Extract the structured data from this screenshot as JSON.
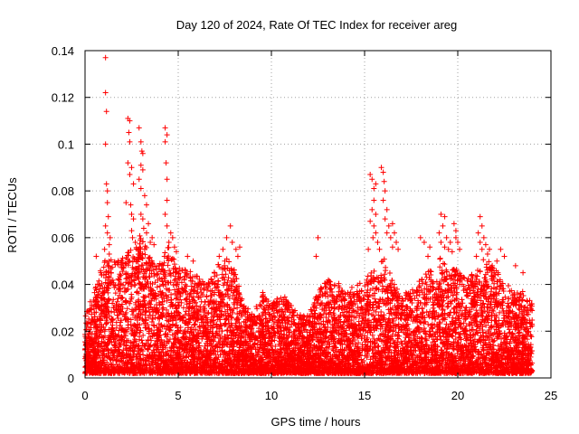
{
  "chart_data": {
    "type": "scatter",
    "title": "Day 120 of 2024, Rate Of TEC Index for receiver areg",
    "xlabel": "GPS time / hours",
    "ylabel": "ROTI / TECUs",
    "xlim": [
      0,
      25
    ],
    "ylim": [
      0,
      0.14
    ],
    "x_ticks": [
      "0",
      "5",
      "10",
      "15",
      "20",
      "25"
    ],
    "y_ticks": [
      "0",
      "0.02",
      "0.04",
      "0.06",
      "0.08",
      "0.1",
      "0.12",
      "0.14"
    ],
    "grid": true,
    "marker": "+",
    "series_color": "#ff0000",
    "data_extent_hours": [
      0,
      24
    ],
    "envelope": [
      [
        0.0,
        0.025
      ],
      [
        0.5,
        0.036
      ],
      [
        1.0,
        0.048
      ],
      [
        1.5,
        0.05
      ],
      [
        2.0,
        0.05
      ],
      [
        2.5,
        0.055
      ],
      [
        3.0,
        0.06
      ],
      [
        3.5,
        0.05
      ],
      [
        4.0,
        0.047
      ],
      [
        4.5,
        0.055
      ],
      [
        5.0,
        0.045
      ],
      [
        5.5,
        0.045
      ],
      [
        6.0,
        0.042
      ],
      [
        6.5,
        0.038
      ],
      [
        7.0,
        0.045
      ],
      [
        7.5,
        0.05
      ],
      [
        8.0,
        0.045
      ],
      [
        8.5,
        0.03
      ],
      [
        9.0,
        0.025
      ],
      [
        9.5,
        0.035
      ],
      [
        10.0,
        0.03
      ],
      [
        10.5,
        0.035
      ],
      [
        11.0,
        0.03
      ],
      [
        11.5,
        0.025
      ],
      [
        12.0,
        0.025
      ],
      [
        12.5,
        0.035
      ],
      [
        13.0,
        0.04
      ],
      [
        13.5,
        0.04
      ],
      [
        14.0,
        0.035
      ],
      [
        14.5,
        0.038
      ],
      [
        15.0,
        0.04
      ],
      [
        15.5,
        0.045
      ],
      [
        16.0,
        0.05
      ],
      [
        16.5,
        0.04
      ],
      [
        17.0,
        0.035
      ],
      [
        17.5,
        0.035
      ],
      [
        18.0,
        0.04
      ],
      [
        18.5,
        0.045
      ],
      [
        19.0,
        0.05
      ],
      [
        19.5,
        0.045
      ],
      [
        20.0,
        0.045
      ],
      [
        20.5,
        0.04
      ],
      [
        21.0,
        0.045
      ],
      [
        21.5,
        0.05
      ],
      [
        22.0,
        0.045
      ],
      [
        22.5,
        0.04
      ],
      [
        23.0,
        0.035
      ],
      [
        23.5,
        0.035
      ],
      [
        24.0,
        0.03
      ]
    ],
    "outliers": [
      [
        1.1,
        0.137
      ],
      [
        1.1,
        0.122
      ],
      [
        1.15,
        0.114
      ],
      [
        1.1,
        0.1
      ],
      [
        1.15,
        0.083
      ],
      [
        1.2,
        0.08
      ],
      [
        1.2,
        0.075
      ],
      [
        1.25,
        0.069
      ],
      [
        1.1,
        0.065
      ],
      [
        1.2,
        0.062
      ],
      [
        1.35,
        0.06
      ],
      [
        1.3,
        0.057
      ],
      [
        1.05,
        0.055
      ],
      [
        0.6,
        0.052
      ],
      [
        1.3,
        0.053
      ],
      [
        2.3,
        0.111
      ],
      [
        2.4,
        0.11
      ],
      [
        2.35,
        0.105
      ],
      [
        2.4,
        0.101
      ],
      [
        2.3,
        0.092
      ],
      [
        2.5,
        0.09
      ],
      [
        2.4,
        0.087
      ],
      [
        2.6,
        0.083
      ],
      [
        2.2,
        0.075
      ],
      [
        2.45,
        0.074
      ],
      [
        2.5,
        0.07
      ],
      [
        2.6,
        0.068
      ],
      [
        2.5,
        0.063
      ],
      [
        2.55,
        0.06
      ],
      [
        2.7,
        0.058
      ],
      [
        2.9,
        0.107
      ],
      [
        3.0,
        0.101
      ],
      [
        3.05,
        0.097
      ],
      [
        3.1,
        0.096
      ],
      [
        3.0,
        0.091
      ],
      [
        3.1,
        0.089
      ],
      [
        2.9,
        0.085
      ],
      [
        3.0,
        0.081
      ],
      [
        3.2,
        0.078
      ],
      [
        3.3,
        0.074
      ],
      [
        3.0,
        0.07
      ],
      [
        3.1,
        0.068
      ],
      [
        3.15,
        0.064
      ],
      [
        3.4,
        0.066
      ],
      [
        3.3,
        0.062
      ],
      [
        3.5,
        0.058
      ],
      [
        3.6,
        0.06
      ],
      [
        3.7,
        0.057
      ],
      [
        2.85,
        0.055
      ],
      [
        3.2,
        0.055
      ],
      [
        4.3,
        0.107
      ],
      [
        4.4,
        0.104
      ],
      [
        4.3,
        0.101
      ],
      [
        4.35,
        0.092
      ],
      [
        4.4,
        0.085
      ],
      [
        4.4,
        0.076
      ],
      [
        4.3,
        0.07
      ],
      [
        4.4,
        0.065
      ],
      [
        4.6,
        0.062
      ],
      [
        4.7,
        0.06
      ],
      [
        4.5,
        0.058
      ],
      [
        4.8,
        0.056
      ],
      [
        4.9,
        0.054
      ],
      [
        5.5,
        0.052
      ],
      [
        5.8,
        0.05
      ],
      [
        7.2,
        0.052
      ],
      [
        7.4,
        0.055
      ],
      [
        7.6,
        0.06
      ],
      [
        7.8,
        0.065
      ],
      [
        7.9,
        0.058
      ],
      [
        8.1,
        0.055
      ],
      [
        8.3,
        0.056
      ],
      [
        7.5,
        0.05
      ],
      [
        8.2,
        0.052
      ],
      [
        12.5,
        0.06
      ],
      [
        12.4,
        0.052
      ],
      [
        15.3,
        0.087
      ],
      [
        15.4,
        0.085
      ],
      [
        15.5,
        0.081
      ],
      [
        15.6,
        0.083
      ],
      [
        15.5,
        0.076
      ],
      [
        15.4,
        0.072
      ],
      [
        15.6,
        0.07
      ],
      [
        15.5,
        0.065
      ],
      [
        15.3,
        0.067
      ],
      [
        15.6,
        0.062
      ],
      [
        15.45,
        0.06
      ],
      [
        15.7,
        0.058
      ],
      [
        15.2,
        0.055
      ],
      [
        15.8,
        0.055
      ],
      [
        15.9,
        0.09
      ],
      [
        16.0,
        0.088
      ],
      [
        16.05,
        0.084
      ],
      [
        16.1,
        0.08
      ],
      [
        16.0,
        0.076
      ],
      [
        16.2,
        0.072
      ],
      [
        16.1,
        0.068
      ],
      [
        16.3,
        0.065
      ],
      [
        16.2,
        0.062
      ],
      [
        16.4,
        0.06
      ],
      [
        16.5,
        0.066
      ],
      [
        16.6,
        0.062
      ],
      [
        16.7,
        0.058
      ],
      [
        16.5,
        0.056
      ],
      [
        16.8,
        0.055
      ],
      [
        18.0,
        0.06
      ],
      [
        18.2,
        0.058
      ],
      [
        18.5,
        0.056
      ],
      [
        18.4,
        0.052
      ],
      [
        19.1,
        0.07
      ],
      [
        19.3,
        0.069
      ],
      [
        19.2,
        0.065
      ],
      [
        19.0,
        0.062
      ],
      [
        19.4,
        0.06
      ],
      [
        19.1,
        0.058
      ],
      [
        19.3,
        0.056
      ],
      [
        19.5,
        0.055
      ],
      [
        19.6,
        0.058
      ],
      [
        19.7,
        0.054
      ],
      [
        19.8,
        0.066
      ],
      [
        19.9,
        0.063
      ],
      [
        20.0,
        0.058
      ],
      [
        20.1,
        0.055
      ],
      [
        19.9,
        0.06
      ],
      [
        21.2,
        0.069
      ],
      [
        21.3,
        0.065
      ],
      [
        21.1,
        0.062
      ],
      [
        21.4,
        0.06
      ],
      [
        21.2,
        0.058
      ],
      [
        21.5,
        0.057
      ],
      [
        21.3,
        0.055
      ],
      [
        21.6,
        0.053
      ],
      [
        21.0,
        0.052
      ],
      [
        21.7,
        0.055
      ],
      [
        22.3,
        0.055
      ],
      [
        22.5,
        0.052
      ],
      [
        22.1,
        0.05
      ],
      [
        23.1,
        0.048
      ],
      [
        23.5,
        0.045
      ]
    ]
  }
}
